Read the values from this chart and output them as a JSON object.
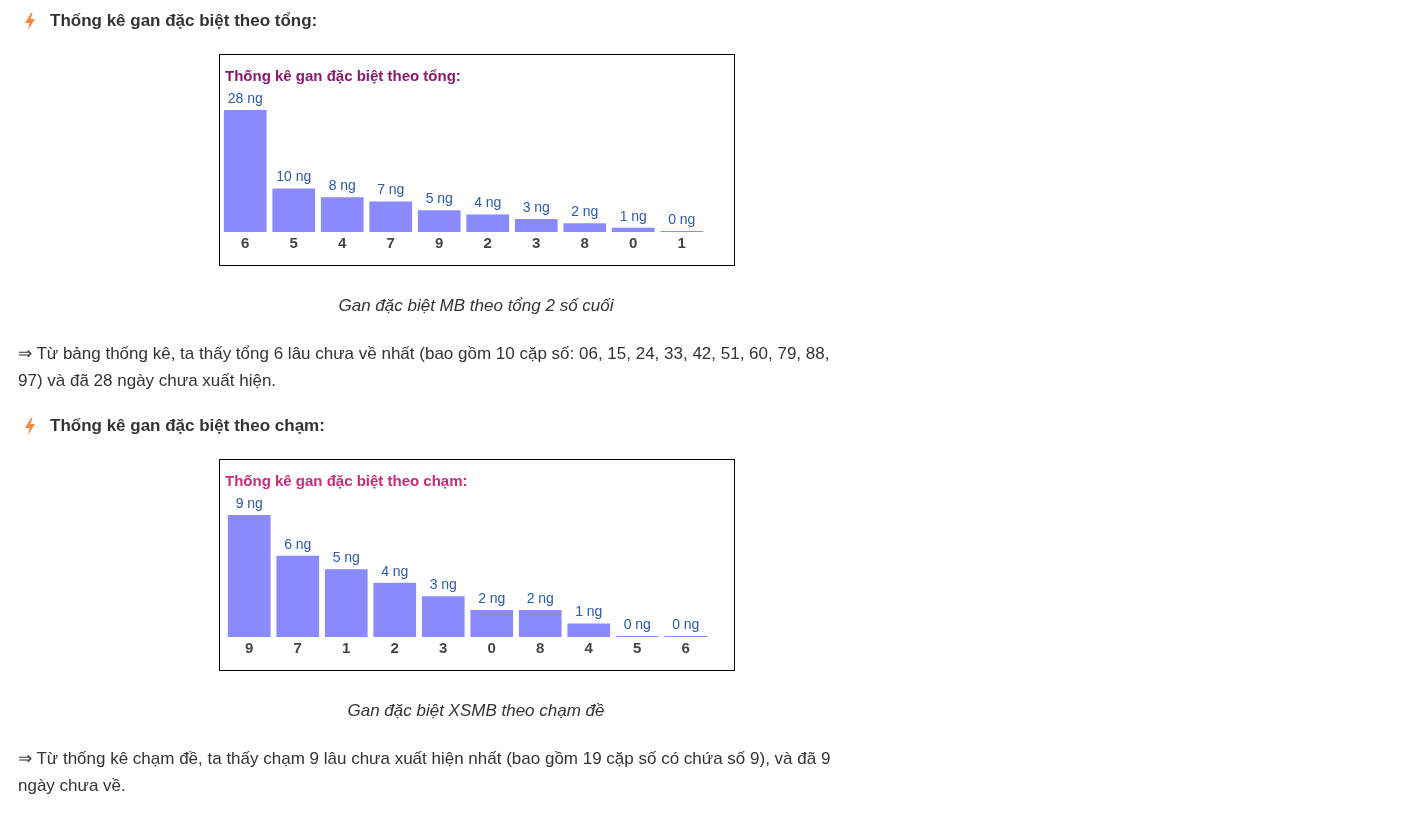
{
  "chart_data": [
    {
      "type": "bar",
      "title": "Thống kê gan đặc biệt theo tổng:",
      "categories": [
        "6",
        "5",
        "4",
        "7",
        "9",
        "2",
        "3",
        "8",
        "0",
        "1"
      ],
      "values": [
        28,
        10,
        8,
        7,
        5,
        4,
        3,
        2,
        1,
        0
      ],
      "value_labels": [
        "28 ng",
        "10 ng",
        "8 ng",
        "7 ng",
        "5 ng",
        "4 ng",
        "3 ng",
        "2 ng",
        "1 ng",
        "0 ng"
      ],
      "color": "#8a8afc",
      "tick_labels": "x",
      "annotations": [
        "Thống kê gan đặc biệt theo tổng:",
        "Gan đặc biệt MB theo tổng 2 số cuối",
        "⇒ Từ bảng thống kê, ta thấy tổng 6 lâu chưa về nhất (bao gồm 10 cặp số: 06, 15, 24, 33, 42, 51, 60, 79, 88, 97) và đã 28 ngày chưa xuất hiện."
      ]
    },
    {
      "type": "bar",
      "title": "Thống kê gan đặc biệt theo chạm:",
      "categories": [
        "9",
        "7",
        "1",
        "2",
        "3",
        "0",
        "8",
        "4",
        "5",
        "6"
      ],
      "values": [
        9,
        6,
        5,
        4,
        3,
        2,
        2,
        1,
        0,
        0
      ],
      "value_labels": [
        "9 ng",
        "6 ng",
        "5 ng",
        "4 ng",
        "3 ng",
        "2 ng",
        "2 ng",
        "1 ng",
        "0 ng",
        "0 ng"
      ],
      "color": "#8a8afc",
      "tick_labels": "x",
      "annotations": [
        "Thống kê gan đặc biệt theo chạm:",
        "Gan đặc biệt XSMB theo chạm đề",
        "⇒ Từ thống kê chạm đề, ta thấy chạm 9 lâu chưa xuất hiện nhất (bao gồm 19 cặp số có chứa số 9), và đã 9 ngày chưa về."
      ]
    }
  ]
}
